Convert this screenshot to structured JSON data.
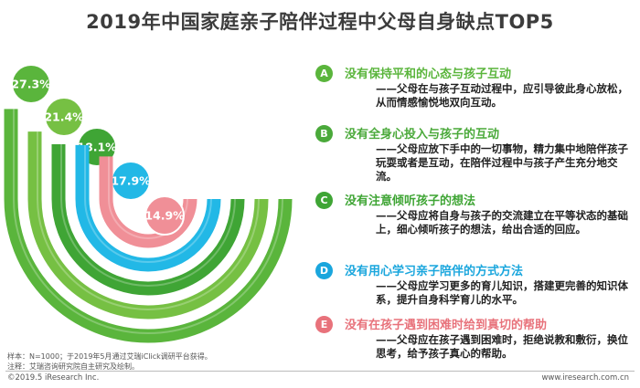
{
  "title": "2019年中国家庭亲子陪伴过程中父母自身缺点TOP5",
  "chart_data": {
    "type": "bar",
    "categories": [
      "没有保持平和的心态与孩子互动",
      "没有全身心投入与孩子的互动",
      "没有注意倾听孩子的想法",
      "没有用心学习亲子陪伴的方式方法",
      "没有在孩子遇到困难时给到真切的帮助"
    ],
    "values": [
      27.3,
      21.4,
      18.1,
      17.9,
      14.9
    ],
    "labels": [
      "27.3%",
      "21.4%",
      "18.1%",
      "17.9%",
      "14.9%"
    ],
    "unit": "%",
    "colors": [
      "#5ab53c",
      "#76c043",
      "#3fa535",
      "#22b8e6",
      "#f08f97"
    ]
  },
  "items": [
    {
      "letter": "A",
      "heading": "没有保持平和的心态与孩子互动",
      "body": "——父母在与孩子互动过程中，应引导彼此身心放松，从而情感愉悦地双向互动。",
      "color": "#5ab53c"
    },
    {
      "letter": "B",
      "heading": "没有全身心投入与孩子的互动",
      "body": "——父母应放下手中的一切事物，精力集中地陪伴孩子玩耍或者是互动，在陪伴过程中与孩子产生充分地交流。",
      "color": "#4aa93a"
    },
    {
      "letter": "C",
      "heading": "没有注意倾听孩子的想法",
      "body": "——父母应将自身与孩子的交流建立在平等状态的基础上，细心倾听孩子的想法，给出合适的回应。",
      "color": "#3fa535"
    },
    {
      "letter": "D",
      "heading": "没有用心学习亲子陪伴的方式方法",
      "body": "——父母应学习更多的育儿知识，搭建更完善的知识体系，提升自身科学育儿的水平。",
      "color": "#1aa6dd"
    },
    {
      "letter": "E",
      "heading": "没有在孩子遇到困难时给到真切的帮助",
      "body": "——父母应在孩子遇到困难时，拒绝说教和敷衍，换位思考，给予孩子真心的帮助。",
      "color": "#e8727b"
    }
  ],
  "notes": [
    "样本：N=1000；于2019年5月通过艾瑞iClick调研平台获得。",
    "注释：艾瑞咨询研究院自主研究及绘制。"
  ],
  "footer": {
    "left": "©2019.5 iResearch Inc.",
    "right": "www.iresearch.com.cn"
  }
}
